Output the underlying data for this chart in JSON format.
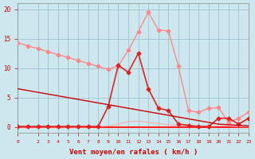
{
  "background_color": "#cce8ee",
  "grid_color": "#99bbcc",
  "x_min": 0,
  "x_max": 23,
  "y_min": -1,
  "y_max": 21,
  "xlabel": "Vent moyen/en rafales ( km/h )",
  "xlabel_color": "#cc0000",
  "xlabel_fontsize": 6.5,
  "yticks": [
    0,
    5,
    10,
    15,
    20
  ],
  "xticks": [
    0,
    2,
    3,
    4,
    5,
    6,
    7,
    8,
    9,
    10,
    11,
    12,
    13,
    14,
    15,
    16,
    17,
    18,
    19,
    20,
    21,
    22,
    23
  ],
  "line_dark_red": {
    "x": [
      0,
      1,
      2,
      3,
      4,
      5,
      6,
      7,
      8,
      9,
      10,
      11,
      12,
      13,
      14,
      15,
      16,
      17,
      18,
      19,
      20,
      21,
      22,
      23
    ],
    "y": [
      6.5,
      6.2,
      5.9,
      5.6,
      5.3,
      5.0,
      4.7,
      4.4,
      4.1,
      3.8,
      3.5,
      3.2,
      2.9,
      2.6,
      2.3,
      2.0,
      1.7,
      1.4,
      1.1,
      0.8,
      0.5,
      0.4,
      0.3,
      0.2
    ],
    "color": "#cc0000",
    "linewidth": 1.0
  },
  "line_light_pink": {
    "x": [
      0,
      1,
      2,
      3,
      4,
      5,
      6,
      7,
      8,
      9,
      10,
      11,
      12,
      13,
      14,
      15,
      16,
      17,
      18,
      19,
      20,
      21,
      22,
      23
    ],
    "y": [
      14.3,
      13.8,
      13.3,
      12.8,
      12.3,
      11.8,
      11.3,
      10.8,
      10.3,
      9.8,
      10.4,
      13.0,
      16.2,
      19.5,
      16.5,
      16.3,
      10.3,
      2.8,
      2.5,
      3.2,
      3.3,
      0.8,
      1.5,
      2.5
    ],
    "color": "#ff8888",
    "linewidth": 1.0,
    "marker": "D",
    "markersize": 2.5
  },
  "line_medium_red": {
    "x": [
      0,
      1,
      2,
      3,
      4,
      5,
      6,
      7,
      8,
      9,
      10,
      11,
      12,
      13,
      14,
      15,
      16,
      17,
      18,
      19,
      20,
      21,
      22,
      23
    ],
    "y": [
      0.1,
      0.1,
      0.1,
      0.1,
      0.1,
      0.1,
      0.1,
      0.1,
      0.1,
      3.5,
      10.5,
      9.3,
      12.5,
      6.5,
      3.2,
      2.8,
      0.5,
      0.3,
      0.1,
      0.1,
      1.5,
      1.5,
      0.5,
      1.5
    ],
    "color": "#dd2222",
    "linewidth": 1.2,
    "marker": "D",
    "markersize": 2.5
  },
  "line_flat_pink": {
    "x": [
      0,
      1,
      2,
      3,
      4,
      5,
      6,
      7,
      8,
      9,
      10,
      11,
      12,
      13,
      14,
      15,
      16,
      17,
      18,
      19,
      20,
      21,
      22,
      23
    ],
    "y": [
      0.0,
      0.0,
      0.0,
      0.0,
      0.0,
      0.0,
      0.0,
      0.0,
      0.1,
      0.2,
      0.5,
      0.9,
      1.0,
      0.8,
      0.6,
      0.4,
      0.3,
      0.2,
      0.1,
      0.1,
      0.2,
      0.2,
      0.1,
      0.1
    ],
    "color": "#ffaaaa",
    "linewidth": 0.8
  },
  "line_bottom_red": {
    "x": [
      0,
      23
    ],
    "y": [
      0,
      0
    ],
    "color": "#ff2222",
    "linewidth": 1.5
  }
}
